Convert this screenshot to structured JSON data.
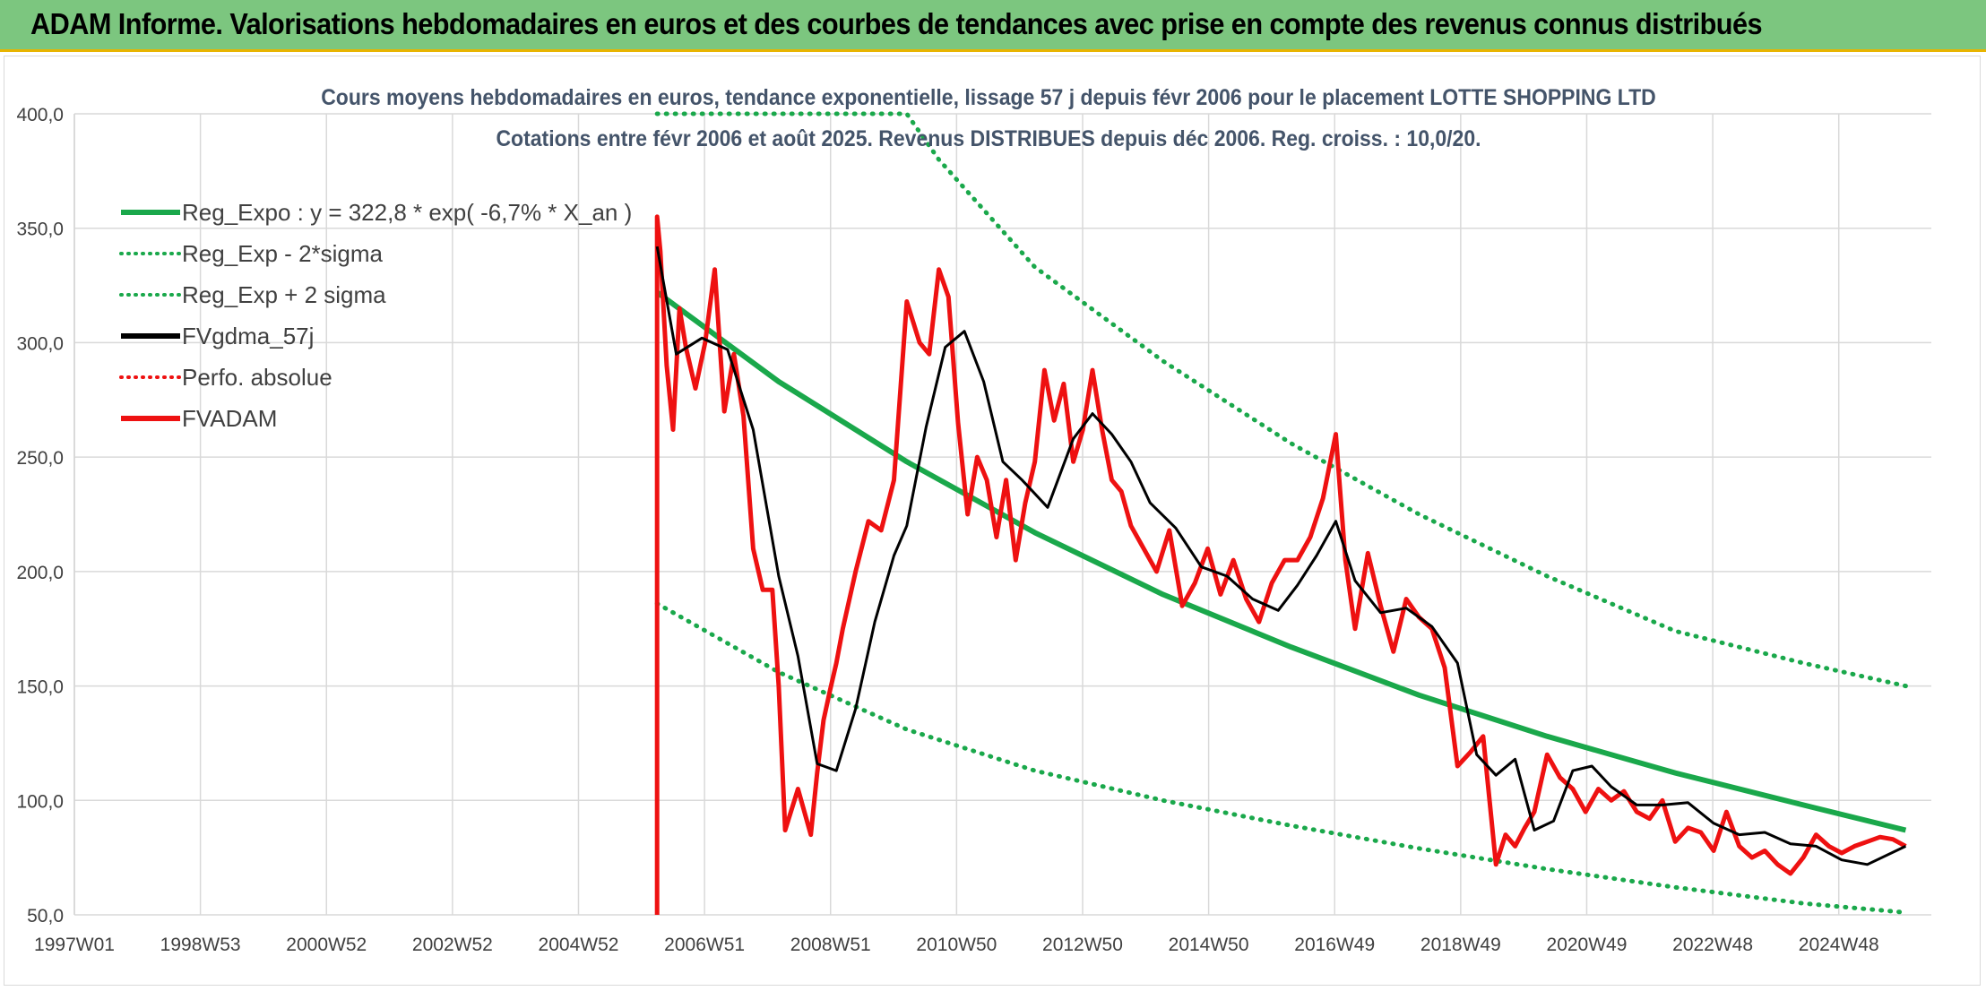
{
  "banner": {
    "title": "ADAM Informe. Valorisations hebdomadaires en euros et des courbes de tendances avec prise en compte des revenus connus distribués"
  },
  "colors": {
    "banner_bg": "#7cc67f",
    "banner_border": "#e8b400",
    "trend": "#1aa84b",
    "trend_dotted": "#1aa84b",
    "smoothed": "#000000",
    "price": "#ee1111",
    "grid": "#d9d9d9",
    "axis_text": "#404040",
    "title_text": "#404a5a"
  },
  "chart_data": {
    "type": "line",
    "title": "Cours moyens hebdomadaires en euros, tendance exponentielle, lissage 57 j depuis févr 2006 pour le placement LOTTE SHOPPING LTD",
    "subtitle": "Cotations entre févr 2006 et août 2025. Revenus DISTRIBUES depuis déc 2006. Reg. croiss. : 10,0/20.",
    "xlabel": "",
    "ylabel": "",
    "ylim": [
      50,
      400
    ],
    "xlim": [
      1997.0,
      2026.0
    ],
    "y_ticks": [
      "400,0",
      "350,0",
      "300,0",
      "250,0",
      "200,0",
      "150,0",
      "100,0",
      "50,0"
    ],
    "x_ticks": [
      "1997W01",
      "1998W53",
      "2000W52",
      "2002W52",
      "2004W52",
      "2006W51",
      "2008W51",
      "2010W50",
      "2012W50",
      "2014W50",
      "2016W49",
      "2018W49",
      "2020W49",
      "2022W48",
      "2024W48"
    ],
    "grid": true,
    "legend_position": "top-left",
    "legend": [
      {
        "label": "Reg_Expo : y = 322,8 * exp( -6,7% *  X_an )",
        "style": "solid",
        "color": "#1aa84b"
      },
      {
        "label": "Reg_Exp - 2*sigma",
        "style": "dotted",
        "color": "#1aa84b"
      },
      {
        "label": "Reg_Exp + 2 sigma",
        "style": "dotted",
        "color": "#1aa84b"
      },
      {
        "label": "FVgdma_57j",
        "style": "solid",
        "color": "#000000"
      },
      {
        "label": "Perfo. absolue",
        "style": "dotted",
        "color": "#ee1111"
      },
      {
        "label": "FVADAM",
        "style": "solid",
        "color": "#ee1111"
      }
    ],
    "series": [
      {
        "name": "Reg_Expo : y = 322,8 * exp( -6,7% *  X_an )",
        "x": [
          2006.1,
          2008.0,
          2010.0,
          2012.0,
          2014.0,
          2016.0,
          2018.0,
          2020.0,
          2022.0,
          2024.0,
          2025.6
        ],
        "values": [
          322,
          283,
          248,
          217,
          190,
          167,
          146,
          128,
          112,
          98,
          87
        ]
      },
      {
        "name": "Reg_Exp - 2*sigma",
        "x": [
          2006.1,
          2008.0,
          2010.0,
          2012.0,
          2014.0,
          2016.0,
          2018.0,
          2020.0,
          2022.0,
          2024.0,
          2025.6
        ],
        "values": [
          186,
          156,
          131,
          113,
          100,
          89,
          79,
          70,
          62,
          55,
          51
        ]
      },
      {
        "name": "Reg_Exp + 2 sigma",
        "x": [
          2006.1,
          2008.0,
          2010.0,
          2010.5,
          2012.0,
          2014.0,
          2016.0,
          2018.0,
          2020.0,
          2022.0,
          2024.0,
          2025.6
        ],
        "values": [
          420,
          412,
          400,
          380,
          333,
          292,
          256,
          225,
          198,
          174,
          160,
          150
        ]
      },
      {
        "name": "FVgdma_57j",
        "x": [
          2006.1,
          2006.4,
          2006.8,
          2007.2,
          2007.6,
          2008.0,
          2008.3,
          2008.6,
          2008.9,
          2009.2,
          2009.5,
          2009.8,
          2010.0,
          2010.3,
          2010.6,
          2010.9,
          2011.2,
          2011.5,
          2011.8,
          2012.2,
          2012.6,
          2012.9,
          2013.2,
          2013.5,
          2013.8,
          2014.2,
          2014.6,
          2015.0,
          2015.4,
          2015.8,
          2016.1,
          2016.4,
          2016.7,
          2017.0,
          2017.4,
          2017.8,
          2018.2,
          2018.6,
          2018.9,
          2019.2,
          2019.5,
          2019.8,
          2020.1,
          2020.4,
          2020.7,
          2021.0,
          2021.4,
          2021.8,
          2022.2,
          2022.6,
          2023.0,
          2023.4,
          2023.8,
          2024.2,
          2024.6,
          2025.0,
          2025.6
        ],
        "values": [
          342,
          295,
          302,
          297,
          262,
          198,
          163,
          116,
          113,
          140,
          178,
          207,
          220,
          263,
          298,
          305,
          283,
          248,
          240,
          228,
          258,
          269,
          260,
          248,
          230,
          219,
          202,
          198,
          188,
          183,
          194,
          207,
          222,
          196,
          182,
          184,
          176,
          160,
          120,
          111,
          118,
          87,
          91,
          113,
          115,
          106,
          98,
          98,
          99,
          90,
          85,
          86,
          81,
          80,
          74,
          72,
          80
        ]
      },
      {
        "name": "FVADAM",
        "x": [
          2006.1,
          2006.1,
          2006.15,
          2006.25,
          2006.35,
          2006.45,
          2006.55,
          2006.7,
          2006.85,
          2007.0,
          2007.15,
          2007.3,
          2007.45,
          2007.6,
          2007.75,
          2007.9,
          2008.0,
          2008.1,
          2008.3,
          2008.5,
          2008.6,
          2008.7,
          2008.8,
          2008.9,
          2009.0,
          2009.2,
          2009.4,
          2009.6,
          2009.8,
          2010.0,
          2010.2,
          2010.35,
          2010.5,
          2010.65,
          2010.8,
          2010.95,
          2011.1,
          2011.25,
          2011.4,
          2011.55,
          2011.7,
          2011.85,
          2012.0,
          2012.15,
          2012.3,
          2012.45,
          2012.6,
          2012.75,
          2012.9,
          2013.05,
          2013.2,
          2013.35,
          2013.5,
          2013.7,
          2013.9,
          2014.1,
          2014.3,
          2014.5,
          2014.7,
          2014.9,
          2015.1,
          2015.3,
          2015.5,
          2015.7,
          2015.9,
          2016.1,
          2016.3,
          2016.5,
          2016.7,
          2016.85,
          2017.0,
          2017.2,
          2017.4,
          2017.6,
          2017.8,
          2018.0,
          2018.2,
          2018.4,
          2018.6,
          2018.8,
          2019.0,
          2019.2,
          2019.35,
          2019.5,
          2019.65,
          2019.8,
          2020.0,
          2020.2,
          2020.4,
          2020.6,
          2020.8,
          2021.0,
          2021.2,
          2021.4,
          2021.6,
          2021.8,
          2022.0,
          2022.2,
          2022.4,
          2022.6,
          2022.8,
          2023.0,
          2023.2,
          2023.4,
          2023.6,
          2023.8,
          2024.0,
          2024.2,
          2024.4,
          2024.6,
          2024.8,
          2025.0,
          2025.2,
          2025.4,
          2025.6
        ],
        "values": [
          50,
          355,
          340,
          290,
          262,
          315,
          298,
          280,
          300,
          332,
          270,
          295,
          268,
          210,
          192,
          192,
          150,
          87,
          105,
          85,
          112,
          135,
          148,
          160,
          175,
          200,
          222,
          218,
          240,
          318,
          300,
          295,
          332,
          320,
          265,
          225,
          250,
          240,
          215,
          240,
          205,
          230,
          248,
          288,
          266,
          282,
          248,
          262,
          288,
          262,
          240,
          235,
          220,
          210,
          200,
          218,
          185,
          195,
          210,
          190,
          205,
          188,
          178,
          195,
          205,
          205,
          215,
          232,
          260,
          205,
          175,
          208,
          185,
          165,
          188,
          180,
          175,
          158,
          115,
          121,
          128,
          72,
          85,
          80,
          88,
          95,
          120,
          110,
          105,
          95,
          105,
          100,
          104,
          95,
          92,
          100,
          82,
          88,
          86,
          78,
          95,
          80,
          75,
          78,
          72,
          68,
          75,
          85,
          80,
          77,
          80,
          82,
          84,
          83,
          80
        ]
      }
    ]
  }
}
